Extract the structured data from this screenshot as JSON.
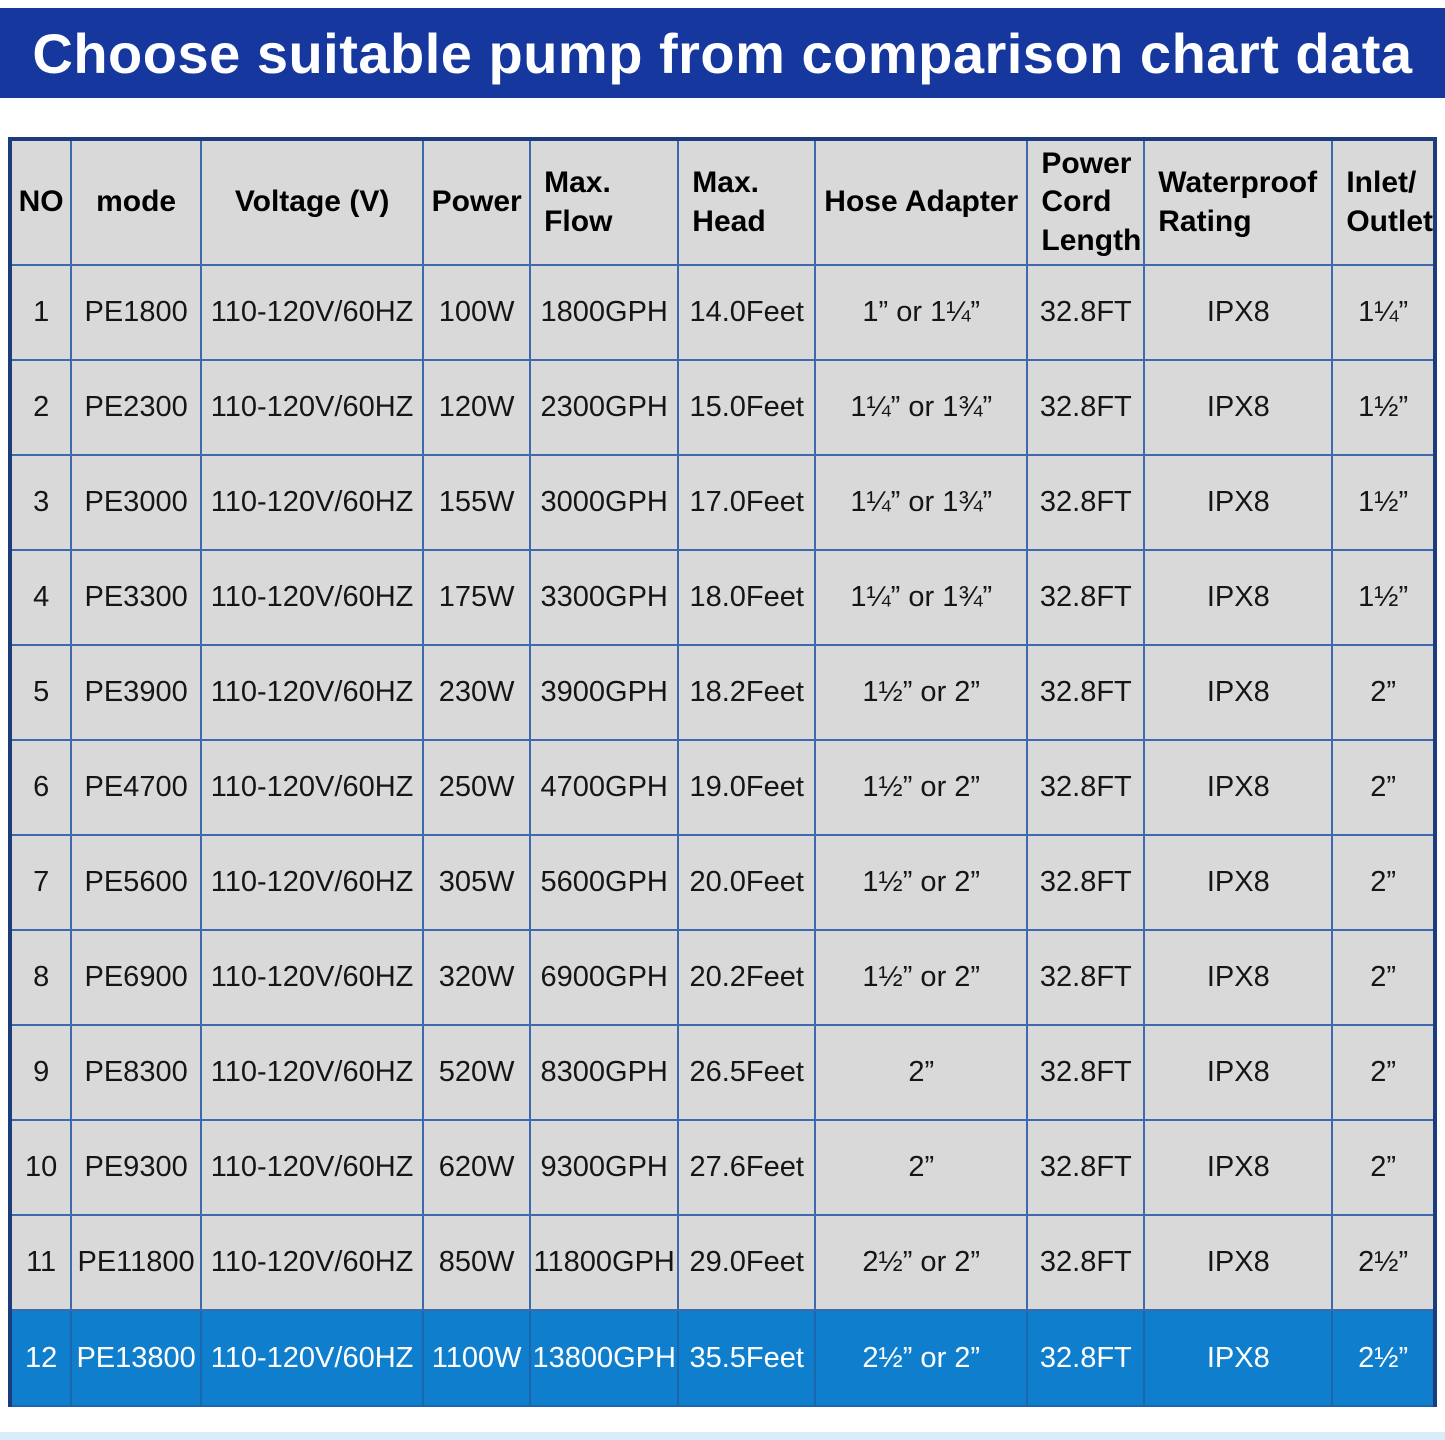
{
  "colors": {
    "title_bar": "#16389e",
    "highlight_row": "#0f7ecd",
    "cell_bg": "#d9d9d9",
    "grid_line": "#3f69ae",
    "outer_border": "#1d3c7c",
    "body_text": "#151515",
    "highlight_text": "#ffffff",
    "highlight_grid": "#1b66ad",
    "bottom_strip": "#d9ecfa",
    "page_bg": "#ffffff"
  },
  "chart_data": {
    "type": "table",
    "title": "Choose suitable pump from comparison chart data",
    "grid": true,
    "layout_hint": "gray grid table with blue lines; last row highlighted in blue with white text",
    "columns": [
      "NO",
      "mode",
      "Voltage (V)",
      "Power",
      "Max.\nFlow",
      "Max.\nHead",
      "Hose Adapter",
      "Power\nCord\nLength",
      "Waterproof\nRating",
      "Inlet/\nOutlet"
    ],
    "rows": [
      [
        "1",
        "PE1800",
        "110-120V/60HZ",
        "100W",
        "1800GPH",
        "14.0Feet",
        "1” or 1¼”",
        "32.8FT",
        "IPX8",
        "1¼”"
      ],
      [
        "2",
        "PE2300",
        "110-120V/60HZ",
        "120W",
        "2300GPH",
        "15.0Feet",
        "1¼” or 1¾”",
        "32.8FT",
        "IPX8",
        "1½”"
      ],
      [
        "3",
        "PE3000",
        "110-120V/60HZ",
        "155W",
        "3000GPH",
        "17.0Feet",
        "1¼” or 1¾”",
        "32.8FT",
        "IPX8",
        "1½”"
      ],
      [
        "4",
        "PE3300",
        "110-120V/60HZ",
        "175W",
        "3300GPH",
        "18.0Feet",
        "1¼” or 1¾”",
        "32.8FT",
        "IPX8",
        "1½”"
      ],
      [
        "5",
        "PE3900",
        "110-120V/60HZ",
        "230W",
        "3900GPH",
        "18.2Feet",
        "1½” or 2”",
        "32.8FT",
        "IPX8",
        "2”"
      ],
      [
        "6",
        "PE4700",
        "110-120V/60HZ",
        "250W",
        "4700GPH",
        "19.0Feet",
        "1½” or 2”",
        "32.8FT",
        "IPX8",
        "2”"
      ],
      [
        "7",
        "PE5600",
        "110-120V/60HZ",
        "305W",
        "5600GPH",
        "20.0Feet",
        "1½” or 2”",
        "32.8FT",
        "IPX8",
        "2”"
      ],
      [
        "8",
        "PE6900",
        "110-120V/60HZ",
        "320W",
        "6900GPH",
        "20.2Feet",
        "1½” or 2”",
        "32.8FT",
        "IPX8",
        "2”"
      ],
      [
        "9",
        "PE8300",
        "110-120V/60HZ",
        "520W",
        "8300GPH",
        "26.5Feet",
        "2”",
        "32.8FT",
        "IPX8",
        "2”"
      ],
      [
        "10",
        "PE9300",
        "110-120V/60HZ",
        "620W",
        "9300GPH",
        "27.6Feet",
        "2”",
        "32.8FT",
        "IPX8",
        "2”"
      ],
      [
        "11",
        "PE11800",
        "110-120V/60HZ",
        "850W",
        "11800GPH",
        "29.0Feet",
        "2½” or 2”",
        "32.8FT",
        "IPX8",
        "2½”"
      ],
      [
        "12",
        "PE13800",
        "110-120V/60HZ",
        "1100W",
        "13800GPH",
        "35.5Feet",
        "2½” or 2”",
        "32.8FT",
        "IPX8",
        "2½”"
      ]
    ],
    "highlighted_row_index": 11
  }
}
